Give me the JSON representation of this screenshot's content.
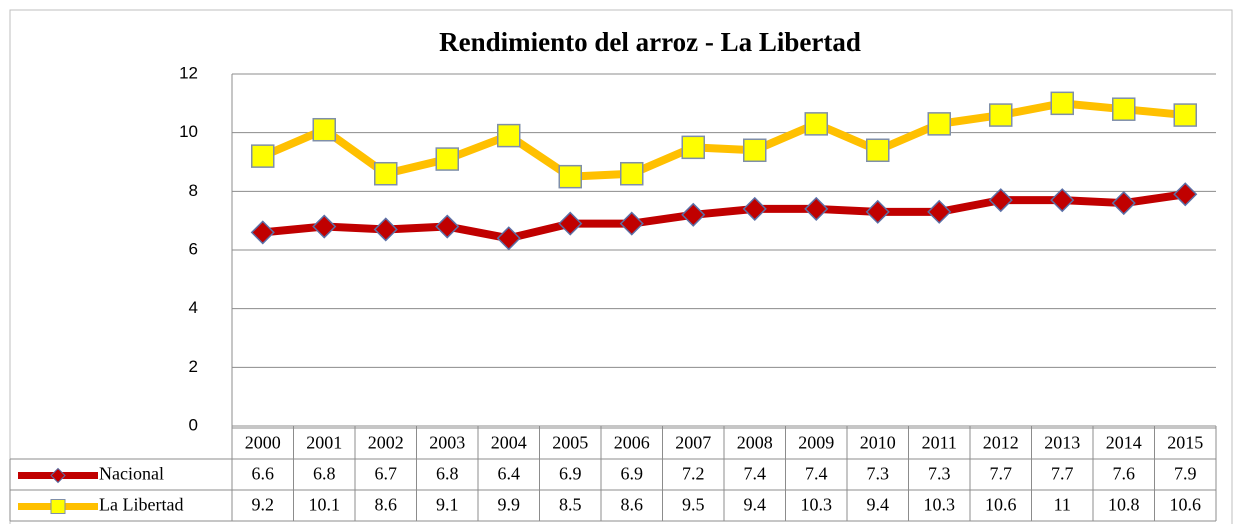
{
  "chart_data": {
    "type": "line",
    "title": "Rendimiento del arroz - La Libertad",
    "categories": [
      "2000",
      "2001",
      "2002",
      "2003",
      "2004",
      "2005",
      "2006",
      "2007",
      "2008",
      "2009",
      "2010",
      "2011",
      "2012",
      "2013",
      "2014",
      "2015"
    ],
    "series": [
      {
        "name": "Nacional",
        "color": "#c00000",
        "marker_color": "#c00000",
        "values": [
          6.6,
          6.8,
          6.7,
          6.8,
          6.4,
          6.9,
          6.9,
          7.2,
          7.4,
          7.4,
          7.3,
          7.3,
          7.7,
          7.7,
          7.6,
          7.9
        ]
      },
      {
        "name": "La Libertad",
        "color": "#ffc000",
        "marker_color": "#ffff00",
        "values": [
          9.2,
          10.1,
          8.6,
          9.1,
          9.9,
          8.5,
          8.6,
          9.5,
          9.4,
          10.3,
          9.4,
          10.3,
          10.6,
          11,
          10.8,
          10.6
        ]
      }
    ],
    "ylim": [
      0,
      12
    ],
    "yticks": [
      0,
      2,
      4,
      6,
      8,
      10,
      12
    ],
    "grid": true
  }
}
